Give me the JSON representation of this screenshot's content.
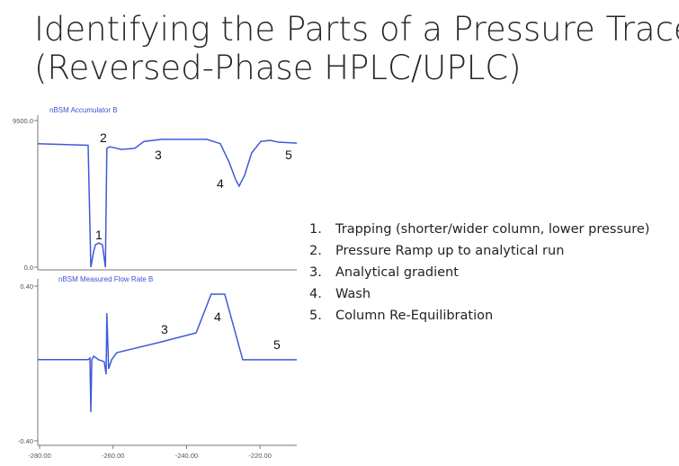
{
  "title": [
    "Identifying the Parts of a Pressure Trace",
    "(Reversed-Phase HPLC/UPLC)"
  ],
  "notes": [
    {
      "number": "1.",
      "text": "Trapping (shorter/wider column, lower pressure)"
    },
    {
      "number": "2.",
      "text": "Pressure Ramp up to analytical run"
    },
    {
      "number": "3.",
      "text": "Analytical gradient"
    },
    {
      "number": "4.",
      "text": "Wash"
    },
    {
      "number": "5.",
      "text": "Column Re-Equilibration"
    }
  ],
  "chart_data": [
    {
      "type": "line",
      "title": "nBSM Accumulator B",
      "x": [
        -280.5,
        -266.8,
        -266.06,
        -265.3,
        -264.8,
        -263.9,
        -262.9,
        -262.1,
        -261.7,
        -260.9,
        -257.7,
        -254.1,
        -251.6,
        -246.7,
        -234.5,
        -230.8,
        -228.4,
        -226.6,
        -225.7,
        -224.2,
        -222.3,
        -219.8,
        -217.3,
        -214.9,
        -210
      ],
      "series": [
        {
          "color": "#3f5ad8",
          "values": [
            8000,
            7900,
            0,
            1000,
            1450,
            1570,
            1450,
            0,
            7700,
            7800,
            7630,
            7700,
            8150,
            8280,
            8280,
            8000,
            6800,
            5650,
            5250,
            5950,
            7400,
            8150,
            8220,
            8100,
            8040
          ]
        }
      ],
      "xlim": [
        -280.5,
        -210
      ],
      "ylim": [
        0,
        9500
      ],
      "yticks": [
        {
          "value": 9500,
          "label": "9500.0"
        },
        {
          "value": 0,
          "label": "0.0"
        }
      ],
      "annotations": [
        "1",
        "2",
        "3",
        "4",
        "5"
      ]
    },
    {
      "type": "line",
      "title": "nBSM Measured Flow Rate B",
      "x": [
        -280.5,
        -266.8,
        -266.3,
        -266.06,
        -265.8,
        -265.3,
        -263.9,
        -262.4,
        -261.9,
        -261.7,
        -261.2,
        -260.4,
        -259,
        -246.7,
        -237.4,
        -233.3,
        -229.6,
        -224.7,
        -210
      ],
      "series": [
        {
          "color": "#3f5ad8",
          "values": [
            0.02,
            0.02,
            0.028,
            -0.251,
            0.019,
            0.037,
            0.019,
            0.009,
            -0.056,
            0.26,
            -0.028,
            0.019,
            0.056,
            0.112,
            0.158,
            0.358,
            0.358,
            0.019,
            0.019
          ]
        }
      ],
      "xlim": [
        -280.5,
        -210
      ],
      "ylim": [
        -0.4,
        0.4
      ],
      "yticks": [
        {
          "value": 0.4,
          "label": "0.40"
        },
        {
          "value": -0.4,
          "label": "-0.40"
        }
      ],
      "xticks": [
        {
          "value": -280,
          "label": "-280.00"
        },
        {
          "value": -260,
          "label": "-260.00"
        },
        {
          "value": -240,
          "label": "-240.00"
        },
        {
          "value": -220,
          "label": "-220.00"
        }
      ],
      "annotations": [
        "3",
        "4",
        "5"
      ]
    }
  ]
}
